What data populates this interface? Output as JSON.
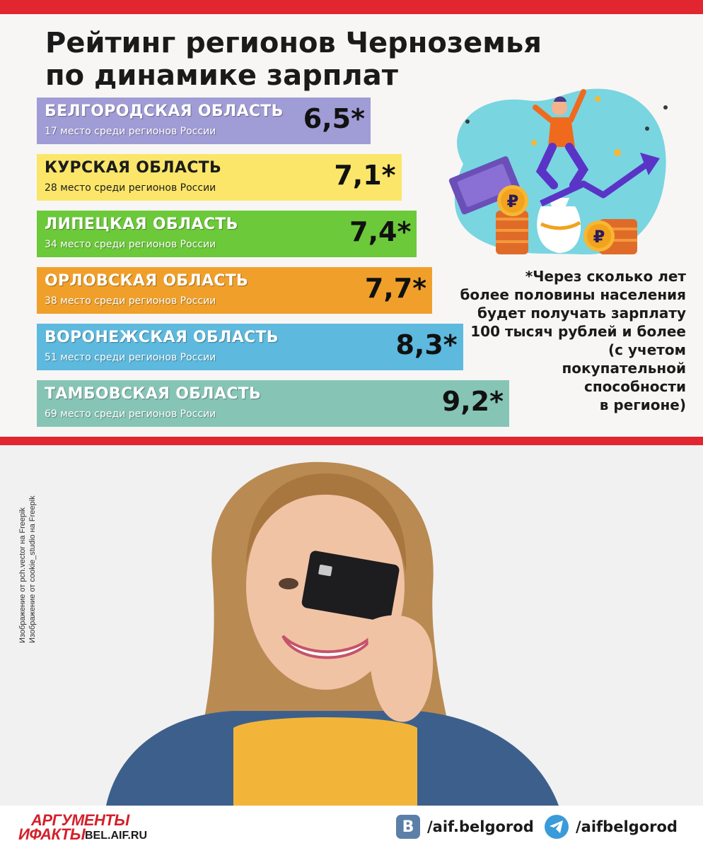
{
  "title_lines": [
    "Рейтинг регионов Черноземья",
    "по динамике зарплат"
  ],
  "chart_data": {
    "type": "bar",
    "orientation": "horizontal",
    "title": "Рейтинг регионов Черноземья по динамике зарплат",
    "bars": [
      {
        "name": "БЕЛГОРОДСКАЯ ОБЛАСТЬ",
        "sub": "17 место среди регионов России",
        "value": 6.5,
        "label": "6,5*",
        "color": "#a09cd6",
        "dark": false
      },
      {
        "name": "КУРСКАЯ ОБЛАСТЬ",
        "sub": "28  место среди регионов России",
        "value": 7.1,
        "label": "7,1*",
        "color": "#fbe66a",
        "dark": true
      },
      {
        "name": "ЛИПЕЦКАЯ ОБЛАСТЬ",
        "sub": "34 место среди регионов России",
        "value": 7.4,
        "label": "7,4*",
        "color": "#6cc93a",
        "dark": false
      },
      {
        "name": "ОРЛОВСКАЯ ОБЛАСТЬ",
        "sub": "38 место среди регионов России",
        "value": 7.7,
        "label": "7,7*",
        "color": "#f0a02a",
        "dark": false
      },
      {
        "name": "ВОРОНЕЖСКАЯ ОБЛАСТЬ",
        "sub": "51 место среди регионов России",
        "value": 8.3,
        "label": "8,3*",
        "color": "#5db9de",
        "dark": false
      },
      {
        "name": "ТАМБОВСКАЯ ОБЛАСТЬ",
        "sub": "69 место среди регионов России",
        "value": 9.2,
        "label": "9,2*",
        "color": "#86c5b6",
        "dark": false
      }
    ]
  },
  "footnote_lines": [
    "*Через сколько лет",
    "более половины населения",
    "будет получать зарплату",
    "100 тысяч рублей и более",
    "(с учетом",
    "покупательной",
    "способности",
    "в регионе)"
  ],
  "credits": [
    "Изображение от pch.vector на Freepik",
    "Изображение от cookie_studio на Freepik"
  ],
  "logo": {
    "line1": "АРГУМЕНТЫ",
    "line2": "ИФАКТЫ",
    "site": "BEL.AIF.RU"
  },
  "social": [
    {
      "icon": "vk-icon",
      "glyph": "B",
      "label": "/aif.belgorod",
      "color": "#5c7fa8"
    },
    {
      "icon": "telegram-icon",
      "glyph": "",
      "label": "/aifbelgorod",
      "color": "#3a9bd9"
    }
  ],
  "ruble_sign": "₽"
}
